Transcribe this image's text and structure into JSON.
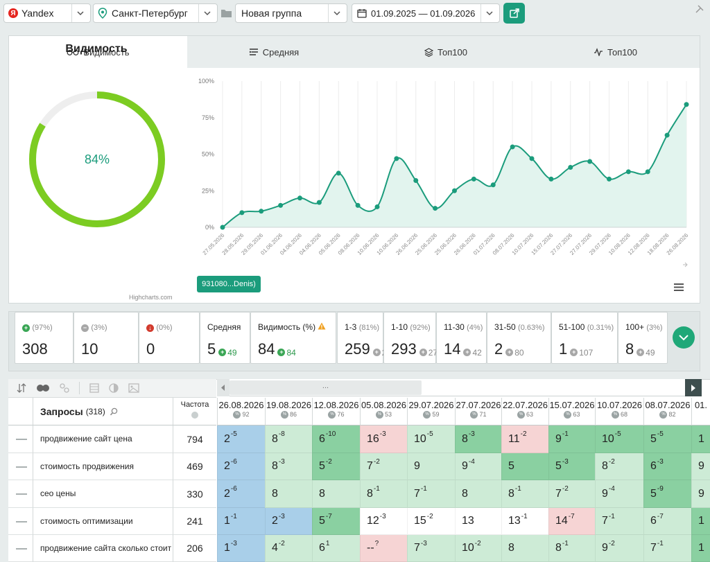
{
  "toolbar": {
    "engine": "Yandex",
    "region": "Санкт-Петербург",
    "group": "Новая группа",
    "date_range": "01.09.2025 — 01.09.2026"
  },
  "tabs": [
    {
      "label": "Видимость",
      "icon": "glasses-icon"
    },
    {
      "label": "Средняя",
      "icon": "average-icon"
    },
    {
      "label": "Топ100",
      "icon": "layers-icon"
    },
    {
      "label": "Топ100",
      "icon": "pulse-icon"
    }
  ],
  "visibility": {
    "title": "Видимость",
    "value": 84,
    "value_label": "84%",
    "credit": "Highcharts.com"
  },
  "chart_data": {
    "type": "area",
    "title": "",
    "xlabel": "",
    "ylabel": "",
    "ylim": [
      0,
      100
    ],
    "y_ticks": [
      "100%",
      "75%",
      "50%",
      "25%",
      "0%"
    ],
    "grid": true,
    "x": [
      "27.05.2026",
      "28.05.2026",
      "29.05.2026",
      "01.06.2026",
      "04.06.2026",
      "04.06.2026",
      "05.06.2026",
      "08.06.2026",
      "10.06.2026",
      "10.06.2026",
      "26.06.2026",
      "25.06.2026",
      "25.06.2026",
      "26.06.2026",
      "01.07.2026",
      "08.07.2026",
      "10.07.2026",
      "15.07.2026",
      "27.07.2026",
      "27.07.2026",
      "29.07.2026",
      "10.08.2026",
      "12.08.2026",
      "18.08.2026",
      "26.08.2026"
    ],
    "series": [
      {
        "name": "931080...Denis)",
        "color": "#1b9c7c",
        "values": [
          0,
          10,
          11,
          15,
          20,
          17,
          37,
          15,
          14,
          47,
          32,
          13,
          25,
          33,
          29,
          55,
          47,
          33,
          41,
          45,
          33,
          38,
          38,
          63,
          84
        ]
      }
    ]
  },
  "stats": [
    {
      "label": "",
      "pct": "(97%)",
      "icon": "plus-circle-icon",
      "value": "308",
      "delta": ""
    },
    {
      "label": "",
      "pct": "(3%)",
      "icon": "minus-circle-icon",
      "value": "10",
      "delta": ""
    },
    {
      "label": "",
      "pct": "(0%)",
      "icon": "down-circle-icon",
      "value": "0",
      "delta": ""
    },
    {
      "label": "Средняя",
      "pct": "",
      "value": "5",
      "delta": "49"
    },
    {
      "label": "Видимость (%)",
      "pct": "",
      "value": "84",
      "delta": "84"
    },
    {
      "label": "1-3",
      "pct": "(81%)",
      "value": "259",
      "delta": "2"
    },
    {
      "label": "1-10",
      "pct": "(92%)",
      "value": "293",
      "delta": "27"
    },
    {
      "label": "11-30",
      "pct": "(4%)",
      "value": "14",
      "delta": "42"
    },
    {
      "label": "31-50",
      "pct": "(0.63%)",
      "value": "2",
      "delta": "80"
    },
    {
      "label": "51-100",
      "pct": "(0.31%)",
      "value": "1",
      "delta": "107"
    },
    {
      "label": "100+",
      "pct": "(3%)",
      "value": "8",
      "delta": "49"
    }
  ],
  "table": {
    "queries_label": "Запросы",
    "queries_count": "(318)",
    "freq_label": "Частота",
    "scroll_label": "...",
    "dates": [
      {
        "d": "26.08.2026",
        "m": "92"
      },
      {
        "d": "19.08.2026",
        "m": "86"
      },
      {
        "d": "12.08.2026",
        "m": "76"
      },
      {
        "d": "05.08.2026",
        "m": "53"
      },
      {
        "d": "29.07.2026",
        "m": "59"
      },
      {
        "d": "27.07.2026",
        "m": "71"
      },
      {
        "d": "22.07.2026",
        "m": "63"
      },
      {
        "d": "15.07.2026",
        "m": "63"
      },
      {
        "d": "10.07.2026",
        "m": "68"
      },
      {
        "d": "08.07.2026",
        "m": "82"
      },
      {
        "d": "01.",
        "m": ""
      }
    ],
    "rows": [
      {
        "q": "продвижение сайт цена",
        "f": "794",
        "cells": [
          [
            "2",
            "-5",
            "blue"
          ],
          [
            "8",
            "-8",
            "lg"
          ],
          [
            "6",
            "-10",
            "dg"
          ],
          [
            "16",
            "-3",
            "pk"
          ],
          [
            "10",
            "-5",
            "lg"
          ],
          [
            "8",
            "-3",
            "dg"
          ],
          [
            "11",
            "-2",
            "pk"
          ],
          [
            "9",
            "-1",
            "dg"
          ],
          [
            "10",
            "-5",
            "dg"
          ],
          [
            "5",
            "-5",
            "dg"
          ],
          [
            "1",
            "",
            "dg"
          ]
        ]
      },
      {
        "q": "стоимость продвижения",
        "f": "469",
        "cells": [
          [
            "2",
            "-6",
            "blue"
          ],
          [
            "8",
            "-3",
            "lg"
          ],
          [
            "5",
            "-2",
            "dg"
          ],
          [
            "7",
            "-2",
            "lg"
          ],
          [
            "9",
            "",
            "lg"
          ],
          [
            "9",
            "-4",
            "lg"
          ],
          [
            "5",
            "",
            "dg"
          ],
          [
            "5",
            "-3",
            "dg"
          ],
          [
            "8",
            "-2",
            "lg"
          ],
          [
            "6",
            "-3",
            "dg"
          ],
          [
            "9",
            "",
            "lg"
          ]
        ]
      },
      {
        "q": "сео цены",
        "f": "330",
        "cells": [
          [
            "2",
            "-6",
            "blue"
          ],
          [
            "8",
            "",
            "lg"
          ],
          [
            "8",
            "",
            "lg"
          ],
          [
            "8",
            "-1",
            "lg"
          ],
          [
            "7",
            "-1",
            "lg"
          ],
          [
            "8",
            "",
            "lg"
          ],
          [
            "8",
            "-1",
            "lg"
          ],
          [
            "7",
            "-2",
            "lg"
          ],
          [
            "9",
            "-4",
            "lg"
          ],
          [
            "5",
            "-9",
            "dg"
          ],
          [
            "9",
            "",
            "lg"
          ]
        ]
      },
      {
        "q": "стоимость оптимизации",
        "f": "241",
        "cells": [
          [
            "1",
            "-1",
            "blue"
          ],
          [
            "2",
            "-3",
            "blue"
          ],
          [
            "5",
            "-7",
            "dg"
          ],
          [
            "12",
            "-3",
            "wh"
          ],
          [
            "15",
            "-2",
            "wh"
          ],
          [
            "13",
            "",
            "wh"
          ],
          [
            "13",
            "-1",
            "wh"
          ],
          [
            "14",
            "-7",
            "pk"
          ],
          [
            "7",
            "-1",
            "lg"
          ],
          [
            "6",
            "-7",
            "lg"
          ],
          [
            "1",
            "",
            "dg"
          ]
        ]
      },
      {
        "q": "продвижение сайта сколько стоит",
        "f": "206",
        "cells": [
          [
            "1",
            "-3",
            "blue"
          ],
          [
            "4",
            "-2",
            "lg"
          ],
          [
            "6",
            "1",
            "lg"
          ],
          [
            "--",
            "?",
            "pk"
          ],
          [
            "7",
            "-3",
            "lg"
          ],
          [
            "10",
            "-2",
            "lg"
          ],
          [
            "8",
            "",
            "lg"
          ],
          [
            "8",
            "-1",
            "lg"
          ],
          [
            "9",
            "-2",
            "lg"
          ],
          [
            "7",
            "-1",
            "lg"
          ],
          [
            "1",
            "",
            "dg"
          ]
        ]
      }
    ]
  }
}
